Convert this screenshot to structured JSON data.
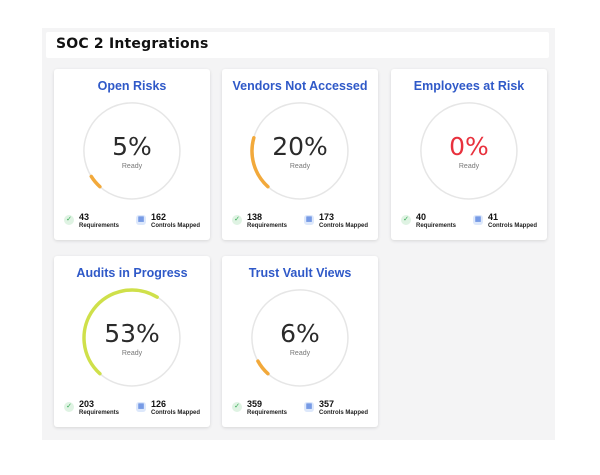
{
  "page": {
    "title": "SOC 2 Integrations"
  },
  "colors": {
    "title_blue": "#2f59c8",
    "title_red": "#e02b3b",
    "value_red": "#e8313d",
    "track": "#e6e6e6",
    "orange": "#f2a93b",
    "lime": "#cfe04a"
  },
  "icons": {
    "requirements": "check-circle-icon",
    "controls": "document-grid-icon"
  },
  "cards": [
    {
      "title": "Open Risks",
      "value": "5%",
      "percent": 5,
      "sub": "Ready",
      "requirements": "43",
      "requirements_label": "Requirements",
      "controls": "162",
      "controls_label": "Controls Mapped",
      "title_color": "#2f59c8",
      "value_color": "#2b2b2b",
      "arc_color": "#f2a93b"
    },
    {
      "title": "Vendors Not Accessed",
      "value": "20%",
      "percent": 20,
      "sub": "Ready",
      "requirements": "138",
      "requirements_label": "Requirements",
      "controls": "173",
      "controls_label": "Controls Mapped",
      "title_color": "#2f59c8",
      "value_color": "#2b2b2b",
      "arc_color": "#f2a93b"
    },
    {
      "title": "Employees at Risk",
      "value": "0%",
      "percent": 0,
      "sub": "Ready",
      "requirements": "40",
      "requirements_label": "Requirements",
      "controls": "41",
      "controls_label": "Controls Mapped",
      "title_color": "#2f59c8",
      "value_color": "#e8313d",
      "arc_color": "#e8313d"
    },
    {
      "title": "Audits in Progress",
      "value": "53%",
      "percent": 53,
      "sub": "Ready",
      "requirements": "203",
      "requirements_label": "Requirements",
      "controls": "126",
      "controls_label": "Controls Mapped",
      "title_color": "#2f59c8",
      "value_color": "#2b2b2b",
      "arc_color": "#cfe04a"
    },
    {
      "title": "Trust Vault Views",
      "value": "6%",
      "percent": 6,
      "sub": "Ready",
      "requirements": "359",
      "requirements_label": "Requirements",
      "controls": "357",
      "controls_label": "Controls Mapped",
      "title_color": "#2f59c8",
      "value_color": "#2b2b2b",
      "arc_color": "#f2a93b"
    }
  ]
}
